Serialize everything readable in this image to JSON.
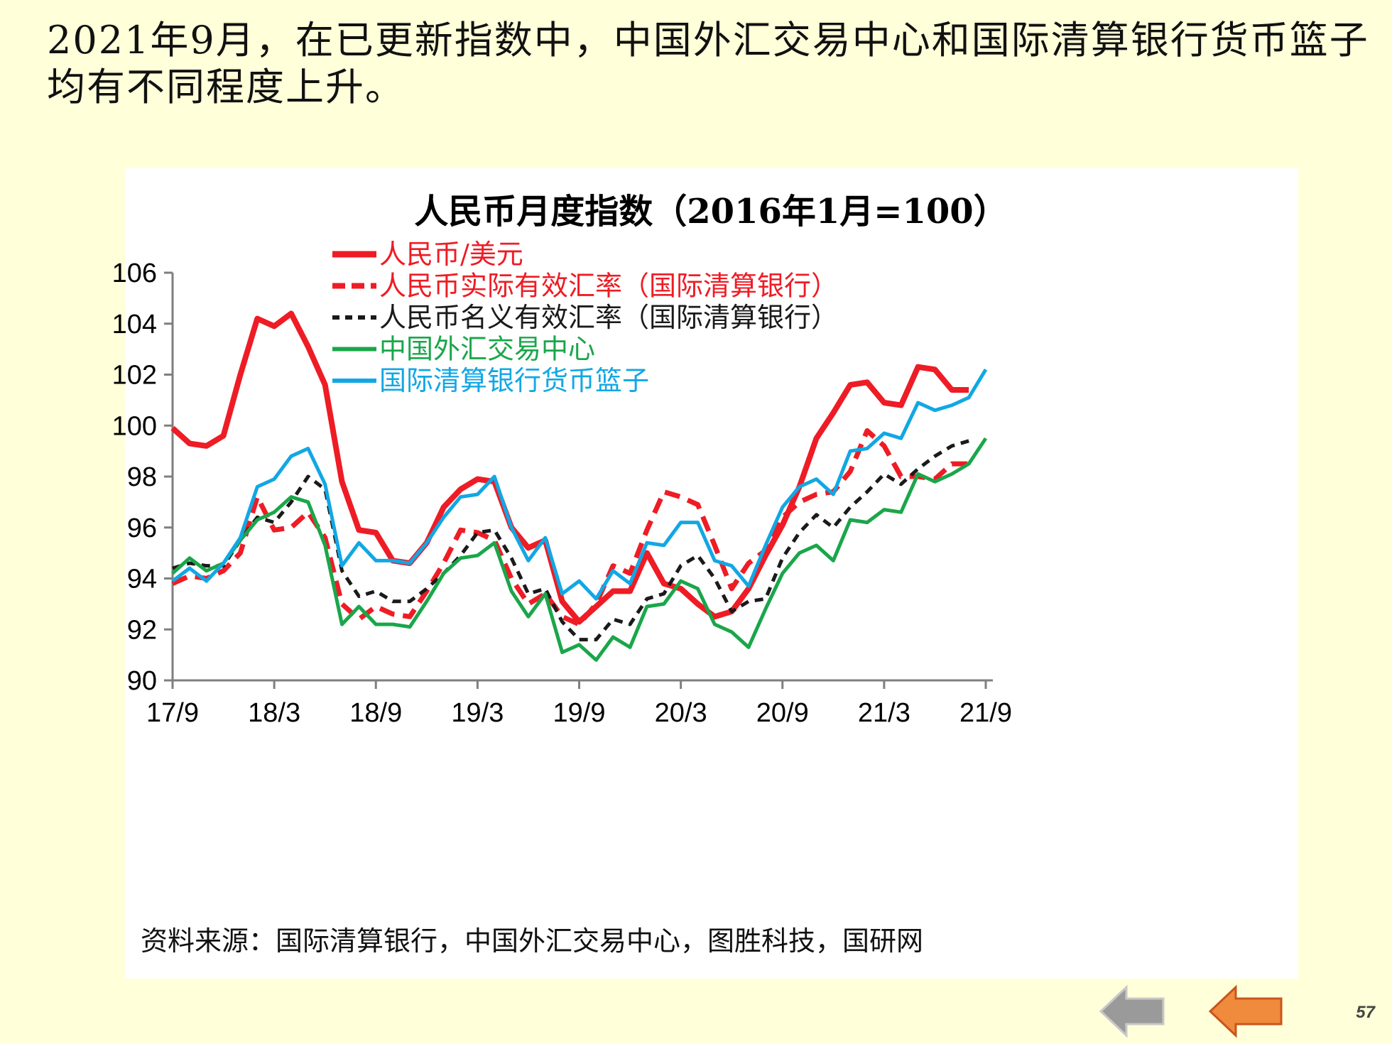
{
  "page": {
    "headline_lines": [
      "2021年9月，在已更新指数中，中国外汇交易中心和国际清算银行货币篮子",
      "均有不同程度上升。"
    ],
    "source": "资料来源：国际清算银行，中国外汇交易中心，图胜科技，国研网",
    "page_number": "57"
  },
  "nav": {
    "prev_icon": "left-arrow-icon",
    "prev_color": "#9a9a9a",
    "next_icon": "left-arrow-icon",
    "next_color": "#f08a3c"
  },
  "chart_data": {
    "type": "line",
    "title": "人民币月度指数（2016年1月=100）",
    "xlabel": "",
    "ylabel": "",
    "ylim": [
      90,
      106
    ],
    "yticks": [
      90,
      92,
      94,
      96,
      98,
      100,
      102,
      104,
      106
    ],
    "x_tick_labels": [
      "17/9",
      "18/3",
      "18/9",
      "19/3",
      "19/9",
      "20/3",
      "20/9",
      "21/3",
      "21/9"
    ],
    "x_tick_index": [
      0,
      6,
      12,
      18,
      24,
      30,
      36,
      42,
      48
    ],
    "x_count": 49,
    "grid": false,
    "legend_position": "top-center",
    "series": [
      {
        "name": "人民币/美元",
        "color": "#ee1c25",
        "dash": "solid",
        "width": 8,
        "values": [
          99.9,
          99.3,
          99.2,
          99.6,
          102.0,
          104.2,
          103.9,
          104.4,
          103.1,
          101.6,
          97.8,
          95.9,
          95.8,
          94.7,
          94.6,
          95.4,
          96.8,
          97.5,
          97.9,
          97.8,
          96.0,
          95.2,
          95.5,
          93.1,
          92.3,
          92.9,
          93.5,
          93.5,
          95.0,
          93.8,
          93.6,
          93.0,
          92.5,
          92.7,
          93.6,
          94.9,
          96.1,
          97.6,
          99.5,
          100.5,
          101.6,
          101.7,
          100.9,
          100.8,
          102.3,
          102.2,
          101.4,
          101.4,
          null
        ]
      },
      {
        "name": "人民币实际有效汇率（国际清算银行）",
        "color": "#ee1c25",
        "dash": "long-dash",
        "width": 7,
        "values": [
          93.8,
          94.1,
          94.0,
          94.3,
          95.0,
          97.2,
          95.9,
          96.0,
          96.6,
          95.6,
          93.0,
          92.4,
          92.9,
          92.6,
          92.5,
          93.5,
          94.6,
          95.9,
          95.8,
          95.5,
          94.0,
          93.0,
          93.4,
          92.5,
          92.2,
          93.0,
          94.5,
          94.2,
          95.9,
          97.4,
          97.2,
          96.9,
          95.3,
          93.6,
          94.6,
          95.1,
          96.4,
          97.0,
          97.3,
          97.4,
          98.2,
          99.8,
          99.2,
          98.0,
          98.0,
          97.9,
          98.5,
          98.5,
          null
        ]
      },
      {
        "name": "人民币名义有效汇率（国际清算银行）",
        "color": "#1a1a1a",
        "dash": "short-dash",
        "width": 5,
        "values": [
          94.4,
          94.6,
          94.5,
          94.5,
          95.5,
          96.4,
          96.2,
          97.0,
          98.0,
          97.5,
          94.3,
          93.3,
          93.5,
          93.1,
          93.1,
          93.6,
          94.2,
          94.9,
          95.8,
          95.9,
          94.8,
          93.4,
          93.6,
          92.3,
          91.6,
          91.6,
          92.4,
          92.2,
          93.2,
          93.4,
          94.5,
          94.9,
          94.0,
          92.7,
          93.1,
          93.2,
          94.8,
          95.8,
          96.5,
          96.0,
          96.8,
          97.4,
          98.1,
          97.7,
          98.3,
          98.8,
          99.2,
          99.4,
          null
        ]
      },
      {
        "name": "中国外汇交易中心",
        "color": "#1aa64a",
        "dash": "solid",
        "width": 5,
        "values": [
          94.2,
          94.8,
          94.3,
          94.6,
          95.5,
          96.3,
          96.6,
          97.2,
          97.0,
          95.3,
          92.2,
          92.9,
          92.2,
          92.2,
          92.1,
          93.1,
          94.2,
          94.8,
          94.9,
          95.4,
          93.5,
          92.5,
          93.4,
          91.1,
          91.4,
          90.8,
          91.7,
          91.3,
          92.9,
          93.0,
          93.9,
          93.6,
          92.2,
          91.9,
          91.3,
          92.8,
          94.2,
          95.0,
          95.3,
          94.7,
          96.3,
          96.2,
          96.7,
          96.6,
          98.1,
          97.8,
          98.1,
          98.5,
          99.5
        ]
      },
      {
        "name": "国际清算银行货币篮子",
        "color": "#12a7e4",
        "dash": "solid",
        "width": 5,
        "values": [
          93.9,
          94.4,
          93.9,
          94.6,
          95.6,
          97.6,
          97.9,
          98.8,
          99.1,
          97.7,
          94.5,
          95.4,
          94.7,
          94.7,
          94.6,
          95.4,
          96.4,
          97.2,
          97.3,
          98.0,
          96.0,
          94.7,
          95.6,
          93.4,
          93.9,
          93.2,
          94.3,
          93.8,
          95.4,
          95.3,
          96.2,
          96.2,
          94.7,
          94.5,
          93.7,
          95.3,
          96.8,
          97.6,
          97.9,
          97.3,
          99.0,
          99.1,
          99.7,
          99.5,
          100.9,
          100.6,
          100.8,
          101.1,
          102.2
        ]
      }
    ]
  }
}
